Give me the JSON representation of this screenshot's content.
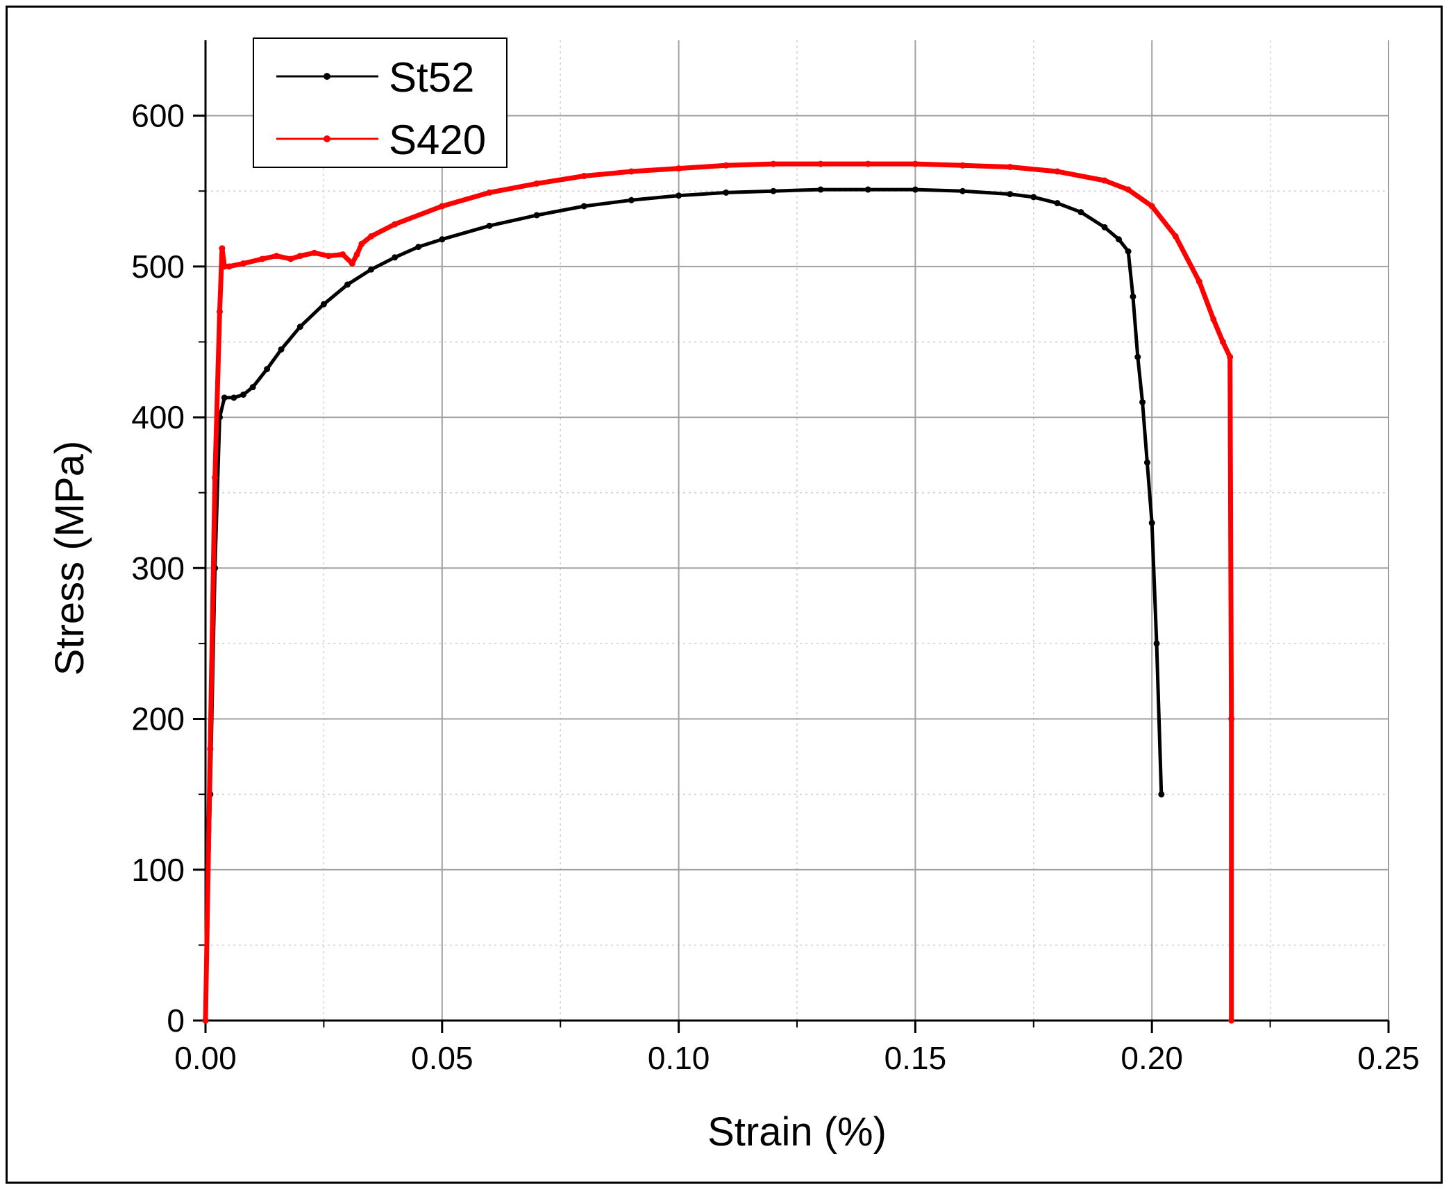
{
  "chart_data": {
    "type": "line",
    "xlabel": "Strain (%)",
    "ylabel": "Stress (MPa)",
    "xlim": [
      0,
      0.25
    ],
    "ylim": [
      0,
      650
    ],
    "xticks": [
      0.0,
      0.05,
      0.1,
      0.15,
      0.2,
      0.25
    ],
    "xtick_labels": [
      "0.00",
      "0.05",
      "0.10",
      "0.15",
      "0.20",
      "0.25"
    ],
    "yticks": [
      0,
      100,
      200,
      300,
      400,
      500,
      600
    ],
    "ytick_labels": [
      "0",
      "100",
      "200",
      "300",
      "400",
      "500",
      "600"
    ],
    "grid": true,
    "legend_position": "top-left",
    "series": [
      {
        "name": "St52",
        "color": "#000000",
        "x": [
          0.0,
          0.001,
          0.002,
          0.003,
          0.004,
          0.006,
          0.008,
          0.01,
          0.013,
          0.016,
          0.02,
          0.025,
          0.03,
          0.035,
          0.04,
          0.045,
          0.05,
          0.06,
          0.07,
          0.08,
          0.09,
          0.1,
          0.11,
          0.12,
          0.13,
          0.14,
          0.15,
          0.16,
          0.17,
          0.175,
          0.18,
          0.185,
          0.19,
          0.193,
          0.195,
          0.196,
          0.197,
          0.198,
          0.199,
          0.2,
          0.201,
          0.202
        ],
        "y": [
          0,
          150,
          300,
          400,
          413,
          413,
          415,
          420,
          432,
          445,
          460,
          475,
          488,
          498,
          506,
          513,
          518,
          527,
          534,
          540,
          544,
          547,
          549,
          550,
          551,
          551,
          551,
          550,
          548,
          546,
          542,
          536,
          526,
          518,
          510,
          480,
          440,
          410,
          370,
          330,
          250,
          150
        ]
      },
      {
        "name": "S420",
        "color": "#ff0000",
        "x": [
          0.0,
          0.001,
          0.002,
          0.003,
          0.0035,
          0.004,
          0.005,
          0.008,
          0.012,
          0.015,
          0.018,
          0.02,
          0.023,
          0.026,
          0.029,
          0.031,
          0.032,
          0.033,
          0.035,
          0.04,
          0.05,
          0.06,
          0.07,
          0.08,
          0.09,
          0.1,
          0.11,
          0.12,
          0.13,
          0.14,
          0.15,
          0.16,
          0.17,
          0.18,
          0.19,
          0.195,
          0.2,
          0.205,
          0.21,
          0.213,
          0.215,
          0.2165,
          0.2168,
          0.2168
        ],
        "y": [
          0,
          180,
          360,
          470,
          512,
          500,
          500,
          502,
          505,
          507,
          505,
          507,
          509,
          507,
          508,
          502,
          508,
          515,
          520,
          528,
          540,
          549,
          555,
          560,
          563,
          565,
          567,
          568,
          568,
          568,
          568,
          567,
          566,
          563,
          557,
          551,
          540,
          520,
          490,
          465,
          450,
          440,
          200,
          0
        ]
      }
    ]
  }
}
